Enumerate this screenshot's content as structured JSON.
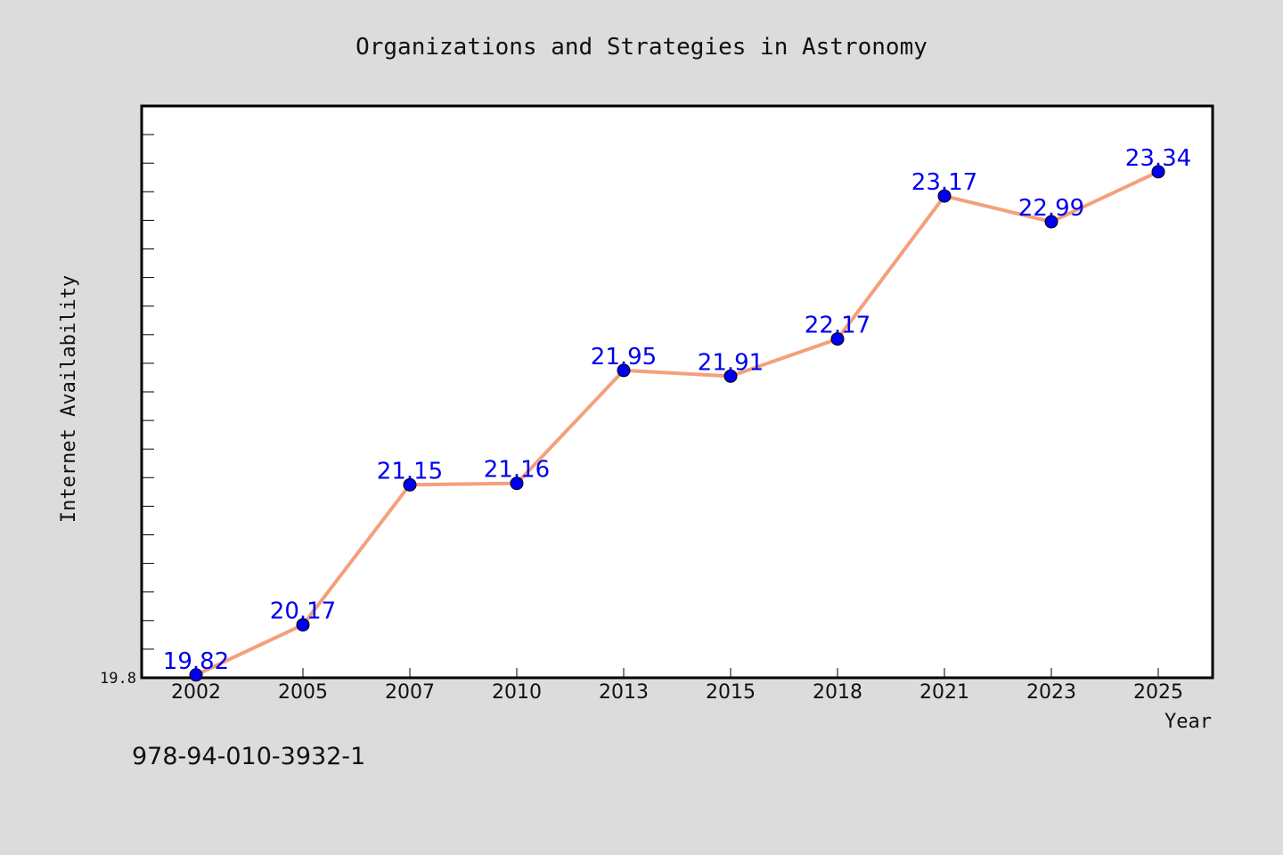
{
  "chart_data": {
    "type": "line",
    "title": "Organizations and Strategies in Astronomy",
    "xlabel": "Year",
    "ylabel": "Internet Availability",
    "categories": [
      "2002",
      "2005",
      "2007",
      "2010",
      "2013",
      "2015",
      "2018",
      "2021",
      "2023",
      "2025"
    ],
    "values": [
      19.82,
      20.17,
      21.15,
      21.16,
      21.95,
      21.91,
      22.17,
      23.17,
      22.99,
      23.34
    ],
    "data_labels": [
      "19.82",
      "20.17",
      "21.15",
      "21.16",
      "21.95",
      "21.91",
      "22.17",
      "23.17",
      "22.99",
      "23.34"
    ],
    "ytick_labels": [
      "19.8"
    ],
    "ylim": [
      19.8,
      23.8
    ],
    "grid": false,
    "line_color": "#f4a07c",
    "marker_color": "#0000ee",
    "label_color": "#0000ee"
  },
  "footer_code": "978-94-010-3932-1"
}
